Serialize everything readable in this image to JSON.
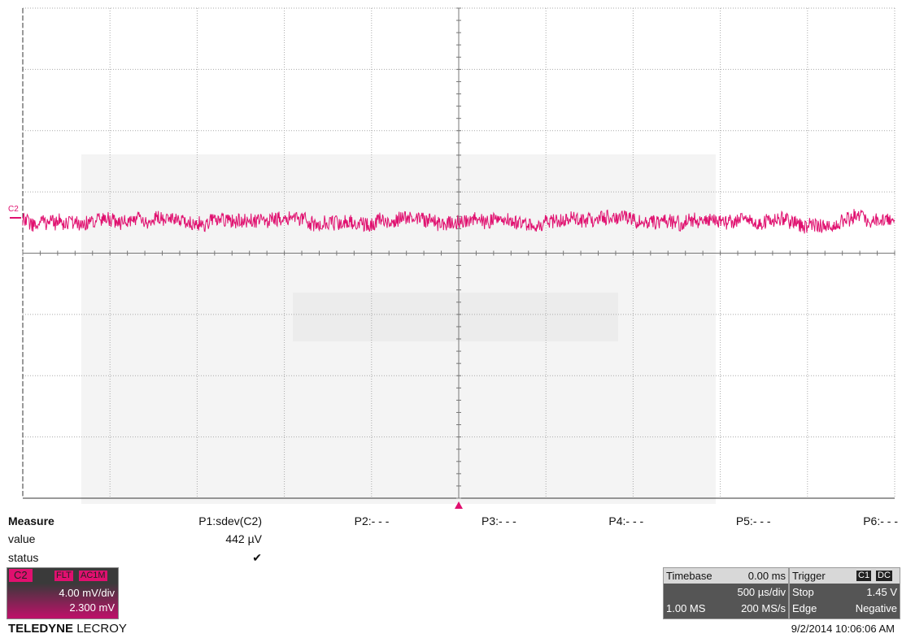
{
  "trace_label": "C2",
  "measure": {
    "header": "Measure",
    "params": [
      "P1:sdev(C2)",
      "P2:- - -",
      "P3:- - -",
      "P4:- - -",
      "P5:- - -",
      "P6:- - -"
    ],
    "value_label": "value",
    "value": "442 µV",
    "status_label": "status",
    "status": "✔"
  },
  "channel": {
    "name": "C2",
    "tags": [
      "FLT",
      "AC1M"
    ],
    "scale": "4.00 mV/div",
    "offset": "2.300 mV"
  },
  "brand": [
    "TELEDYNE",
    "LECROY"
  ],
  "timebase": {
    "label": "Timebase",
    "delay": "0.00 ms",
    "scale": "500 µs/div",
    "samples": "1.00 MS",
    "rate": "200 MS/s"
  },
  "trigger": {
    "label": "Trigger",
    "source": "C1",
    "coupling": "DC",
    "mode": "Stop",
    "level": "1.45 V",
    "type": "Edge",
    "slope": "Negative"
  },
  "timestamp": "9/2/2014 10:06:06 AM"
}
